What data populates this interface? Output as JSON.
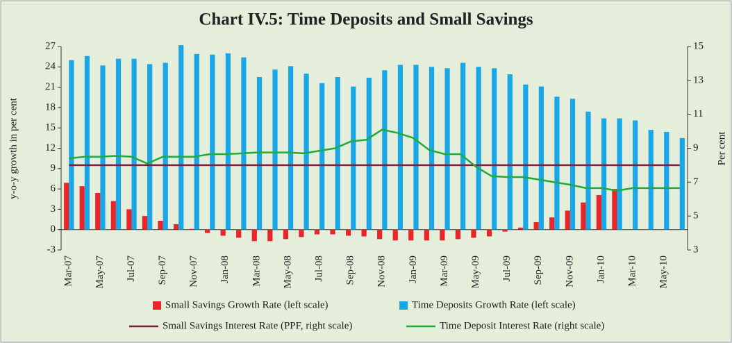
{
  "chart_data": {
    "type": "bar",
    "title": "Chart IV.5: Time Deposits and Small Savings",
    "y_label": "y-o-y growth in per cent",
    "y2_label": "Per cent",
    "categories": [
      "Mar-07",
      null,
      "May-07",
      null,
      "Jul-07",
      null,
      "Sep-07",
      null,
      "Nov-07",
      null,
      "Jan-08",
      null,
      "Mar-08",
      null,
      "May-08",
      null,
      "Jul-08",
      null,
      "Sep-08",
      null,
      "Nov-08",
      null,
      "Jan-09",
      null,
      "Mar-09",
      null,
      "May-09",
      null,
      "Jul-09",
      null,
      "Sep-09",
      null,
      "Nov-09",
      null,
      "Jan-10",
      null,
      "Mar-10",
      null,
      "May-10",
      null
    ],
    "ylim": [
      -3,
      27
    ],
    "yticks": [
      -3,
      0,
      3,
      6,
      9,
      12,
      15,
      18,
      21,
      24,
      27
    ],
    "y2lim": [
      3,
      15
    ],
    "y2ticks": [
      3,
      5,
      7,
      9,
      11,
      13,
      15
    ],
    "series": [
      {
        "name": "Small Savings Growth Rate (left scale)",
        "type": "bar",
        "color": "#e8262a",
        "values": [
          6.9,
          6.4,
          5.4,
          4.2,
          3.0,
          2.0,
          1.3,
          0.8,
          0.1,
          -0.5,
          -0.9,
          -1.2,
          -1.7,
          -1.7,
          -1.4,
          -1.1,
          -0.7,
          -0.7,
          -0.9,
          -1.0,
          -1.4,
          -1.6,
          -1.6,
          -1.6,
          -1.6,
          -1.4,
          -1.2,
          -1.0,
          -0.3,
          0.3,
          1.1,
          1.8,
          2.8,
          4.0,
          5.1,
          6.0,
          null,
          null,
          null,
          null
        ]
      },
      {
        "name": "Time Deposits Growth Rate (left scale)",
        "type": "bar",
        "color": "#1aa7e8",
        "values": [
          25.0,
          25.6,
          24.2,
          25.2,
          25.2,
          24.4,
          24.6,
          27.2,
          25.9,
          25.8,
          26.0,
          25.4,
          22.5,
          23.6,
          24.1,
          23.0,
          21.6,
          22.5,
          21.1,
          22.4,
          23.5,
          24.3,
          24.3,
          24.0,
          23.8,
          24.6,
          24.0,
          23.8,
          22.9,
          21.4,
          21.1,
          19.6,
          19.3,
          17.4,
          16.4,
          16.4,
          16.1,
          14.7,
          14.4,
          13.5
        ]
      },
      {
        "name": "Small Savings Interest Rate (PPF, right scale)",
        "type": "line",
        "axis": "y2",
        "color": "#7b1c3a",
        "values": [
          8,
          8,
          8,
          8,
          8,
          8,
          8,
          8,
          8,
          8,
          8,
          8,
          8,
          8,
          8,
          8,
          8,
          8,
          8,
          8,
          8,
          8,
          8,
          8,
          8,
          8,
          8,
          8,
          8,
          8,
          8,
          8,
          8,
          8,
          8,
          8,
          8,
          8,
          8,
          8
        ]
      },
      {
        "name": "Time Deposit Interest Rate (right scale)",
        "type": "line",
        "axis": "y2",
        "color": "#1faa3a",
        "values": [
          8.4,
          8.5,
          8.5,
          8.55,
          8.5,
          8.1,
          8.5,
          8.5,
          8.5,
          8.65,
          8.65,
          8.7,
          8.75,
          8.75,
          8.75,
          8.7,
          8.85,
          9.0,
          9.4,
          9.5,
          10.1,
          9.9,
          9.6,
          8.9,
          8.65,
          8.65,
          7.9,
          7.35,
          7.3,
          7.3,
          7.15,
          7.0,
          6.85,
          6.65,
          6.65,
          6.5,
          6.65,
          6.65,
          6.65,
          6.65
        ]
      }
    ]
  }
}
